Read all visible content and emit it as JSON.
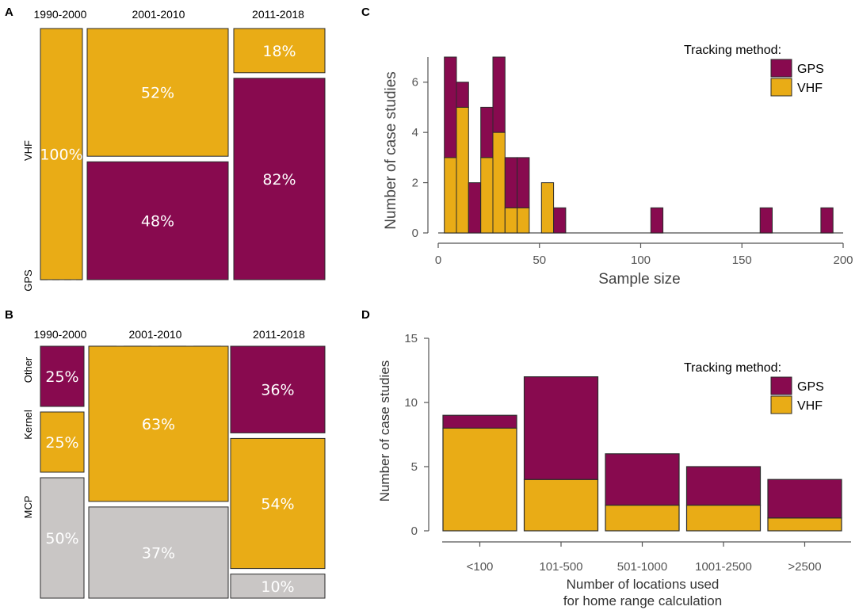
{
  "colors": {
    "gps": "#880a4f",
    "vhf": "#e9ac16",
    "mcp": "#c9c6c5",
    "stroke": "#2b2b2b"
  },
  "panels": {
    "a": "A",
    "b": "B",
    "c": "C",
    "d": "D"
  },
  "chart_data": [
    {
      "type": "mosaic",
      "panel": "A",
      "eras": [
        "1990-2000",
        "2001-2010",
        "2011-2018"
      ],
      "row_labels": [
        "VHF",
        "GPS"
      ],
      "columns": [
        {
          "era": "1990-2000",
          "cells": [
            {
              "category": "VHF",
              "value": 100,
              "label": "100%"
            },
            {
              "category": "GPS",
              "value": 0,
              "label": ""
            }
          ]
        },
        {
          "era": "2001-2010",
          "cells": [
            {
              "category": "VHF",
              "value": 52,
              "label": "52%"
            },
            {
              "category": "GPS",
              "value": 48,
              "label": "48%"
            }
          ]
        },
        {
          "era": "2011-2018",
          "cells": [
            {
              "category": "VHF",
              "value": 18,
              "label": "18%"
            },
            {
              "category": "GPS",
              "value": 82,
              "label": "82%"
            }
          ]
        }
      ]
    },
    {
      "type": "mosaic",
      "panel": "B",
      "eras": [
        "1990-2000",
        "2001-2010",
        "2011-2018"
      ],
      "row_labels": [
        "Other",
        "Kernel",
        "MCP"
      ],
      "columns": [
        {
          "era": "1990-2000",
          "cells": [
            {
              "category": "Other",
              "value": 25,
              "label": "25%"
            },
            {
              "category": "Kernel",
              "value": 25,
              "label": "25%"
            },
            {
              "category": "MCP",
              "value": 50,
              "label": "50%"
            }
          ]
        },
        {
          "era": "2001-2010",
          "cells": [
            {
              "category": "Other",
              "value": 0,
              "label": ""
            },
            {
              "category": "Kernel",
              "value": 63,
              "label": "63%"
            },
            {
              "category": "MCP",
              "value": 37,
              "label": "37%"
            }
          ]
        },
        {
          "era": "2011-2018",
          "cells": [
            {
              "category": "Other",
              "value": 36,
              "label": "36%"
            },
            {
              "category": "Kernel",
              "value": 54,
              "label": "54%"
            },
            {
              "category": "MCP",
              "value": 10,
              "label": "10%"
            }
          ]
        }
      ]
    },
    {
      "type": "bar",
      "subtype": "stacked-histogram",
      "panel": "C",
      "xlabel": "Sample size",
      "ylabel": "Number of case studies",
      "xlim": [
        0,
        200
      ],
      "ylim": [
        0,
        7
      ],
      "xticks": [
        0,
        50,
        100,
        150,
        200
      ],
      "yticks": [
        0,
        2,
        4,
        6
      ],
      "bin_width": 6,
      "bins": [
        {
          "x0": 3,
          "vhf": 3,
          "gps": 4
        },
        {
          "x0": 9,
          "vhf": 5,
          "gps": 1
        },
        {
          "x0": 15,
          "vhf": 0,
          "gps": 2
        },
        {
          "x0": 21,
          "vhf": 3,
          "gps": 2
        },
        {
          "x0": 27,
          "vhf": 4,
          "gps": 3
        },
        {
          "x0": 33,
          "vhf": 1,
          "gps": 2
        },
        {
          "x0": 39,
          "vhf": 1,
          "gps": 2
        },
        {
          "x0": 51,
          "vhf": 2,
          "gps": 0
        },
        {
          "x0": 57,
          "vhf": 0,
          "gps": 1
        },
        {
          "x0": 105,
          "vhf": 0,
          "gps": 1
        },
        {
          "x0": 159,
          "vhf": 0,
          "gps": 1
        },
        {
          "x0": 189,
          "vhf": 0,
          "gps": 1
        }
      ],
      "legend": {
        "title": "Tracking method:",
        "items": [
          "GPS",
          "VHF"
        ],
        "placement": "top-right"
      }
    },
    {
      "type": "bar",
      "subtype": "stacked",
      "panel": "D",
      "xlabel_line1": "Number of locations used",
      "xlabel_line2": "for home range calculation",
      "ylabel": "Number of case studies",
      "ylim": [
        0,
        15
      ],
      "yticks": [
        0,
        5,
        10,
        15
      ],
      "categories": [
        "<100",
        "101-500",
        "501-1000",
        "1001-2500",
        ">2500"
      ],
      "series": [
        {
          "name": "VHF",
          "values": [
            8,
            4,
            2,
            2,
            1
          ]
        },
        {
          "name": "GPS",
          "values": [
            1,
            8,
            4,
            3,
            3
          ]
        }
      ],
      "legend": {
        "title": "Tracking method:",
        "items": [
          "GPS",
          "VHF"
        ],
        "placement": "top-right"
      }
    }
  ]
}
